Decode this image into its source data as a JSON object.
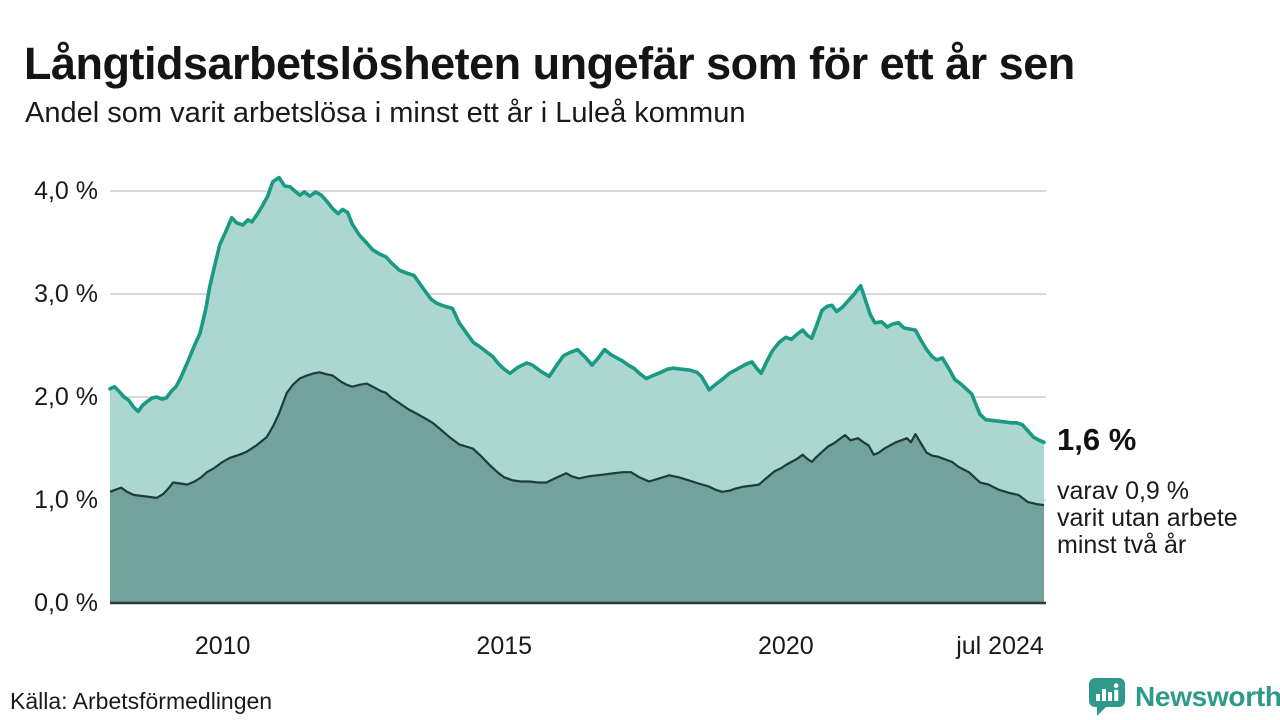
{
  "chart_data": {
    "type": "area",
    "title": "Långtidsarbetslösheten ungefär som för ett år sen",
    "subtitle": "Andel som varit arbetslösa i minst ett år i Luleå kommun",
    "source": "Källa: Arbetsförmedlingen",
    "x_range": [
      2008,
      2024.583
    ],
    "y_range": [
      0,
      4.2
    ],
    "grid": true,
    "legend": "none",
    "y_ticks": [
      {
        "label": "4,0 %",
        "value": 4
      },
      {
        "label": "3,0 %",
        "value": 3
      },
      {
        "label": "2,0 %",
        "value": 2
      },
      {
        "label": "1,0 %",
        "value": 1
      },
      {
        "label": "0,0 %",
        "value": 0
      }
    ],
    "x_ticks": [
      {
        "label": "2010",
        "year": 2010
      },
      {
        "label": "2015",
        "year": 2015
      },
      {
        "label": "2020",
        "year": 2020
      },
      {
        "label": "jul 2024",
        "year": 2024.583
      }
    ],
    "annotation": {
      "value": "1,6 %",
      "lines": [
        "varav 0,9 %",
        "varit utan arbete",
        "minst två år"
      ]
    },
    "colors": {
      "line_1yr": "#1a9a83",
      "fill_1yr": "#a7d5cd",
      "line_2yr": "#1d3c3c",
      "fill_2yr": "#70a099",
      "gridline": "#d9d9d9",
      "axis": "#2f3737"
    },
    "series": [
      {
        "name": "Andel arbetslösa minst ett år",
        "unit": "%",
        "points": [
          [
            2008.0,
            2.08
          ],
          [
            2008.08,
            2.1
          ],
          [
            2008.17,
            2.05
          ],
          [
            2008.25,
            2.0
          ],
          [
            2008.33,
            1.97
          ],
          [
            2008.42,
            1.9
          ],
          [
            2008.5,
            1.86
          ],
          [
            2008.58,
            1.92
          ],
          [
            2008.67,
            1.96
          ],
          [
            2008.75,
            1.99
          ],
          [
            2008.83,
            2.0
          ],
          [
            2008.92,
            1.98
          ],
          [
            2009.0,
            1.99
          ],
          [
            2009.08,
            2.05
          ],
          [
            2009.17,
            2.1
          ],
          [
            2009.25,
            2.18
          ],
          [
            2009.37,
            2.33
          ],
          [
            2009.5,
            2.5
          ],
          [
            2009.6,
            2.62
          ],
          [
            2009.7,
            2.85
          ],
          [
            2009.77,
            3.07
          ],
          [
            2009.87,
            3.3
          ],
          [
            2009.95,
            3.48
          ],
          [
            2010.05,
            3.6
          ],
          [
            2010.16,
            3.74
          ],
          [
            2010.25,
            3.69
          ],
          [
            2010.36,
            3.67
          ],
          [
            2010.45,
            3.72
          ],
          [
            2010.52,
            3.7
          ],
          [
            2010.62,
            3.78
          ],
          [
            2010.71,
            3.86
          ],
          [
            2010.8,
            3.95
          ],
          [
            2010.89,
            4.09
          ],
          [
            2011.0,
            4.13
          ],
          [
            2011.1,
            4.05
          ],
          [
            2011.2,
            4.04
          ],
          [
            2011.3,
            3.99
          ],
          [
            2011.37,
            3.96
          ],
          [
            2011.45,
            3.99
          ],
          [
            2011.55,
            3.95
          ],
          [
            2011.65,
            3.99
          ],
          [
            2011.75,
            3.96
          ],
          [
            2011.85,
            3.9
          ],
          [
            2011.95,
            3.83
          ],
          [
            2012.05,
            3.78
          ],
          [
            2012.13,
            3.82
          ],
          [
            2012.22,
            3.79
          ],
          [
            2012.3,
            3.68
          ],
          [
            2012.43,
            3.57
          ],
          [
            2012.55,
            3.5
          ],
          [
            2012.66,
            3.43
          ],
          [
            2012.78,
            3.39
          ],
          [
            2012.9,
            3.36
          ],
          [
            2013.0,
            3.3
          ],
          [
            2013.14,
            3.23
          ],
          [
            2013.28,
            3.2
          ],
          [
            2013.4,
            3.18
          ],
          [
            2013.5,
            3.1
          ],
          [
            2013.58,
            3.04
          ],
          [
            2013.7,
            2.95
          ],
          [
            2013.8,
            2.91
          ],
          [
            2013.95,
            2.88
          ],
          [
            2014.08,
            2.86
          ],
          [
            2014.2,
            2.72
          ],
          [
            2014.33,
            2.62
          ],
          [
            2014.45,
            2.53
          ],
          [
            2014.56,
            2.49
          ],
          [
            2014.68,
            2.44
          ],
          [
            2014.8,
            2.39
          ],
          [
            2014.9,
            2.32
          ],
          [
            2015.0,
            2.27
          ],
          [
            2015.1,
            2.23
          ],
          [
            2015.25,
            2.29
          ],
          [
            2015.4,
            2.33
          ],
          [
            2015.5,
            2.31
          ],
          [
            2015.65,
            2.25
          ],
          [
            2015.8,
            2.2
          ],
          [
            2015.92,
            2.3
          ],
          [
            2016.05,
            2.4
          ],
          [
            2016.16,
            2.43
          ],
          [
            2016.3,
            2.46
          ],
          [
            2016.45,
            2.38
          ],
          [
            2016.56,
            2.31
          ],
          [
            2016.67,
            2.38
          ],
          [
            2016.78,
            2.46
          ],
          [
            2016.9,
            2.41
          ],
          [
            2017.0,
            2.38
          ],
          [
            2017.1,
            2.35
          ],
          [
            2017.2,
            2.31
          ],
          [
            2017.3,
            2.28
          ],
          [
            2017.4,
            2.23
          ],
          [
            2017.52,
            2.18
          ],
          [
            2017.65,
            2.21
          ],
          [
            2017.78,
            2.24
          ],
          [
            2017.9,
            2.27
          ],
          [
            2018.0,
            2.28
          ],
          [
            2018.15,
            2.27
          ],
          [
            2018.3,
            2.26
          ],
          [
            2018.42,
            2.24
          ],
          [
            2018.5,
            2.2
          ],
          [
            2018.64,
            2.07
          ],
          [
            2018.75,
            2.12
          ],
          [
            2018.87,
            2.17
          ],
          [
            2019.0,
            2.23
          ],
          [
            2019.1,
            2.26
          ],
          [
            2019.2,
            2.29
          ],
          [
            2019.3,
            2.32
          ],
          [
            2019.4,
            2.34
          ],
          [
            2019.48,
            2.28
          ],
          [
            2019.56,
            2.23
          ],
          [
            2019.65,
            2.33
          ],
          [
            2019.75,
            2.44
          ],
          [
            2019.88,
            2.53
          ],
          [
            2020.0,
            2.58
          ],
          [
            2020.1,
            2.56
          ],
          [
            2020.2,
            2.61
          ],
          [
            2020.3,
            2.65
          ],
          [
            2020.38,
            2.6
          ],
          [
            2020.46,
            2.57
          ],
          [
            2020.55,
            2.7
          ],
          [
            2020.64,
            2.84
          ],
          [
            2020.73,
            2.88
          ],
          [
            2020.82,
            2.89
          ],
          [
            2020.9,
            2.83
          ],
          [
            2021.0,
            2.87
          ],
          [
            2021.1,
            2.93
          ],
          [
            2021.2,
            2.99
          ],
          [
            2021.33,
            3.08
          ],
          [
            2021.42,
            2.93
          ],
          [
            2021.5,
            2.8
          ],
          [
            2021.58,
            2.72
          ],
          [
            2021.7,
            2.73
          ],
          [
            2021.8,
            2.68
          ],
          [
            2021.9,
            2.71
          ],
          [
            2022.0,
            2.72
          ],
          [
            2022.1,
            2.67
          ],
          [
            2022.2,
            2.66
          ],
          [
            2022.3,
            2.65
          ],
          [
            2022.4,
            2.55
          ],
          [
            2022.5,
            2.46
          ],
          [
            2022.6,
            2.39
          ],
          [
            2022.68,
            2.36
          ],
          [
            2022.78,
            2.38
          ],
          [
            2022.9,
            2.27
          ],
          [
            2023.0,
            2.17
          ],
          [
            2023.1,
            2.13
          ],
          [
            2023.2,
            2.08
          ],
          [
            2023.3,
            2.03
          ],
          [
            2023.38,
            1.92
          ],
          [
            2023.45,
            1.83
          ],
          [
            2023.55,
            1.78
          ],
          [
            2023.7,
            1.77
          ],
          [
            2023.85,
            1.76
          ],
          [
            2024.0,
            1.75
          ],
          [
            2024.1,
            1.75
          ],
          [
            2024.2,
            1.73
          ],
          [
            2024.3,
            1.67
          ],
          [
            2024.4,
            1.61
          ],
          [
            2024.5,
            1.58
          ],
          [
            2024.583,
            1.56
          ]
        ]
      },
      {
        "name": "varav arbetslösa minst två år",
        "unit": "%",
        "points": [
          [
            2008.0,
            1.08
          ],
          [
            2008.1,
            1.1
          ],
          [
            2008.2,
            1.12
          ],
          [
            2008.3,
            1.08
          ],
          [
            2008.42,
            1.05
          ],
          [
            2008.55,
            1.04
          ],
          [
            2008.7,
            1.03
          ],
          [
            2008.83,
            1.02
          ],
          [
            2008.95,
            1.06
          ],
          [
            2009.05,
            1.12
          ],
          [
            2009.12,
            1.17
          ],
          [
            2009.25,
            1.16
          ],
          [
            2009.37,
            1.15
          ],
          [
            2009.5,
            1.18
          ],
          [
            2009.62,
            1.22
          ],
          [
            2009.72,
            1.27
          ],
          [
            2009.85,
            1.31
          ],
          [
            2010.0,
            1.37
          ],
          [
            2010.13,
            1.41
          ],
          [
            2010.3,
            1.44
          ],
          [
            2010.43,
            1.47
          ],
          [
            2010.6,
            1.53
          ],
          [
            2010.78,
            1.61
          ],
          [
            2010.9,
            1.72
          ],
          [
            2011.0,
            1.84
          ],
          [
            2011.14,
            2.04
          ],
          [
            2011.25,
            2.12
          ],
          [
            2011.37,
            2.18
          ],
          [
            2011.5,
            2.21
          ],
          [
            2011.62,
            2.23
          ],
          [
            2011.72,
            2.24
          ],
          [
            2011.85,
            2.22
          ],
          [
            2011.95,
            2.21
          ],
          [
            2012.1,
            2.15
          ],
          [
            2012.2,
            2.12
          ],
          [
            2012.3,
            2.1
          ],
          [
            2012.45,
            2.12
          ],
          [
            2012.56,
            2.13
          ],
          [
            2012.7,
            2.09
          ],
          [
            2012.8,
            2.06
          ],
          [
            2012.9,
            2.04
          ],
          [
            2013.0,
            1.99
          ],
          [
            2013.14,
            1.94
          ],
          [
            2013.3,
            1.88
          ],
          [
            2013.44,
            1.84
          ],
          [
            2013.6,
            1.79
          ],
          [
            2013.73,
            1.75
          ],
          [
            2013.88,
            1.68
          ],
          [
            2014.03,
            1.61
          ],
          [
            2014.2,
            1.54
          ],
          [
            2014.44,
            1.5
          ],
          [
            2014.6,
            1.42
          ],
          [
            2014.74,
            1.34
          ],
          [
            2014.9,
            1.26
          ],
          [
            2015.0,
            1.22
          ],
          [
            2015.15,
            1.19
          ],
          [
            2015.3,
            1.18
          ],
          [
            2015.45,
            1.18
          ],
          [
            2015.6,
            1.17
          ],
          [
            2015.75,
            1.17
          ],
          [
            2015.9,
            1.21
          ],
          [
            2016.1,
            1.26
          ],
          [
            2016.2,
            1.23
          ],
          [
            2016.33,
            1.21
          ],
          [
            2016.5,
            1.23
          ],
          [
            2016.65,
            1.24
          ],
          [
            2016.8,
            1.25
          ],
          [
            2016.95,
            1.26
          ],
          [
            2017.1,
            1.27
          ],
          [
            2017.25,
            1.27
          ],
          [
            2017.4,
            1.22
          ],
          [
            2017.57,
            1.18
          ],
          [
            2017.75,
            1.21
          ],
          [
            2017.93,
            1.24
          ],
          [
            2018.1,
            1.22
          ],
          [
            2018.28,
            1.19
          ],
          [
            2018.45,
            1.16
          ],
          [
            2018.64,
            1.13
          ],
          [
            2018.75,
            1.1
          ],
          [
            2018.87,
            1.08
          ],
          [
            2019.0,
            1.09
          ],
          [
            2019.1,
            1.11
          ],
          [
            2019.25,
            1.13
          ],
          [
            2019.4,
            1.14
          ],
          [
            2019.52,
            1.15
          ],
          [
            2019.65,
            1.21
          ],
          [
            2019.8,
            1.28
          ],
          [
            2019.92,
            1.31
          ],
          [
            2020.0,
            1.34
          ],
          [
            2020.1,
            1.37
          ],
          [
            2020.2,
            1.4
          ],
          [
            2020.3,
            1.44
          ],
          [
            2020.38,
            1.4
          ],
          [
            2020.46,
            1.37
          ],
          [
            2020.55,
            1.42
          ],
          [
            2020.65,
            1.47
          ],
          [
            2020.75,
            1.52
          ],
          [
            2020.85,
            1.55
          ],
          [
            2020.95,
            1.59
          ],
          [
            2021.05,
            1.63
          ],
          [
            2021.15,
            1.58
          ],
          [
            2021.28,
            1.6
          ],
          [
            2021.38,
            1.56
          ],
          [
            2021.47,
            1.53
          ],
          [
            2021.56,
            1.44
          ],
          [
            2021.65,
            1.46
          ],
          [
            2021.75,
            1.5
          ],
          [
            2021.85,
            1.53
          ],
          [
            2021.95,
            1.56
          ],
          [
            2022.05,
            1.58
          ],
          [
            2022.15,
            1.6
          ],
          [
            2022.22,
            1.56
          ],
          [
            2022.3,
            1.64
          ],
          [
            2022.4,
            1.55
          ],
          [
            2022.5,
            1.46
          ],
          [
            2022.6,
            1.43
          ],
          [
            2022.7,
            1.42
          ],
          [
            2022.8,
            1.4
          ],
          [
            2022.95,
            1.37
          ],
          [
            2023.07,
            1.32
          ],
          [
            2023.25,
            1.27
          ],
          [
            2023.35,
            1.22
          ],
          [
            2023.45,
            1.17
          ],
          [
            2023.6,
            1.15
          ],
          [
            2023.78,
            1.1
          ],
          [
            2023.96,
            1.07
          ],
          [
            2024.13,
            1.05
          ],
          [
            2024.3,
            0.98
          ],
          [
            2024.45,
            0.96
          ],
          [
            2024.583,
            0.95
          ]
        ]
      }
    ]
  },
  "branding": {
    "logo_text": "Newsworthy",
    "logo_color": "#2f9a8b",
    "logo_icon": "speech-bubble-bar-chart-icon"
  }
}
